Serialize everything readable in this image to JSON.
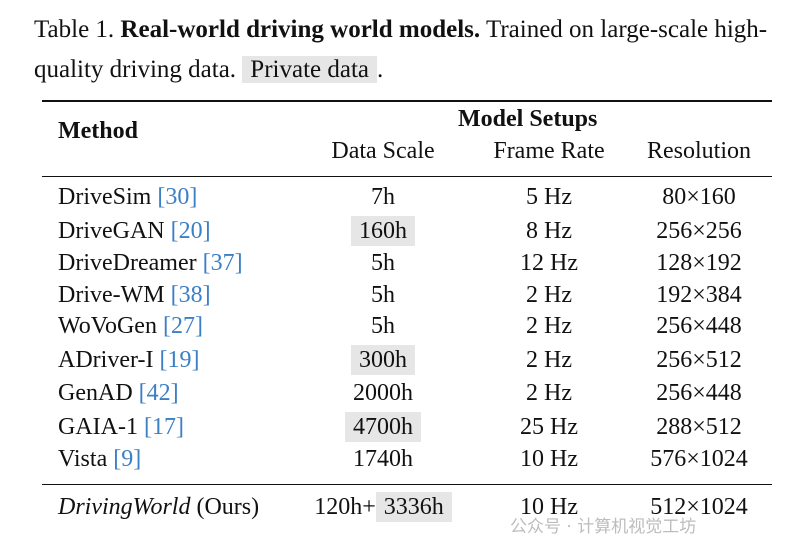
{
  "caption": {
    "label": "Table 1.",
    "title": "Real-world driving world models.",
    "desc": "Trained on large-scale high-quality driving data.",
    "private_tag": "Private data",
    "end": "."
  },
  "headers": {
    "method": "Method",
    "group": "Model Setups",
    "data_scale": "Data Scale",
    "frame_rate": "Frame Rate",
    "resolution": "Resolution"
  },
  "rows": [
    {
      "name": "DriveSim",
      "ref": "[30]",
      "scale": "7h",
      "private": false,
      "rate": "5 Hz",
      "res": "80×160"
    },
    {
      "name": "DriveGAN",
      "ref": "[20]",
      "scale": "160h",
      "private": true,
      "rate": "8 Hz",
      "res": "256×256"
    },
    {
      "name": "DriveDreamer",
      "ref": "[37]",
      "scale": "5h",
      "private": false,
      "rate": "12 Hz",
      "res": "128×192"
    },
    {
      "name": "Drive-WM",
      "ref": "[38]",
      "scale": "5h",
      "private": false,
      "rate": "2 Hz",
      "res": "192×384"
    },
    {
      "name": "WoVoGen",
      "ref": "[27]",
      "scale": "5h",
      "private": false,
      "rate": "2 Hz",
      "res": "256×448"
    },
    {
      "name": "ADriver-I",
      "ref": "[19]",
      "scale": "300h",
      "private": true,
      "rate": "2 Hz",
      "res": "256×512"
    },
    {
      "name": "GenAD",
      "ref": "[42]",
      "scale": "2000h",
      "private": false,
      "rate": "2 Hz",
      "res": "256×448"
    },
    {
      "name": "GAIA-1",
      "ref": "[17]",
      "scale": "4700h",
      "private": true,
      "rate": "25 Hz",
      "res": "288×512"
    },
    {
      "name": "Vista",
      "ref": "[9]",
      "scale": "1740h",
      "private": false,
      "rate": "10 Hz",
      "res": "576×1024"
    }
  ],
  "ours": {
    "name": "DrivingWorld",
    "suffix": "(Ours)",
    "scale_public": "120h+",
    "scale_private": "3336h",
    "rate": "10 Hz",
    "res": "512×1024"
  },
  "watermark": "公众号 · 计算机视觉工坊"
}
